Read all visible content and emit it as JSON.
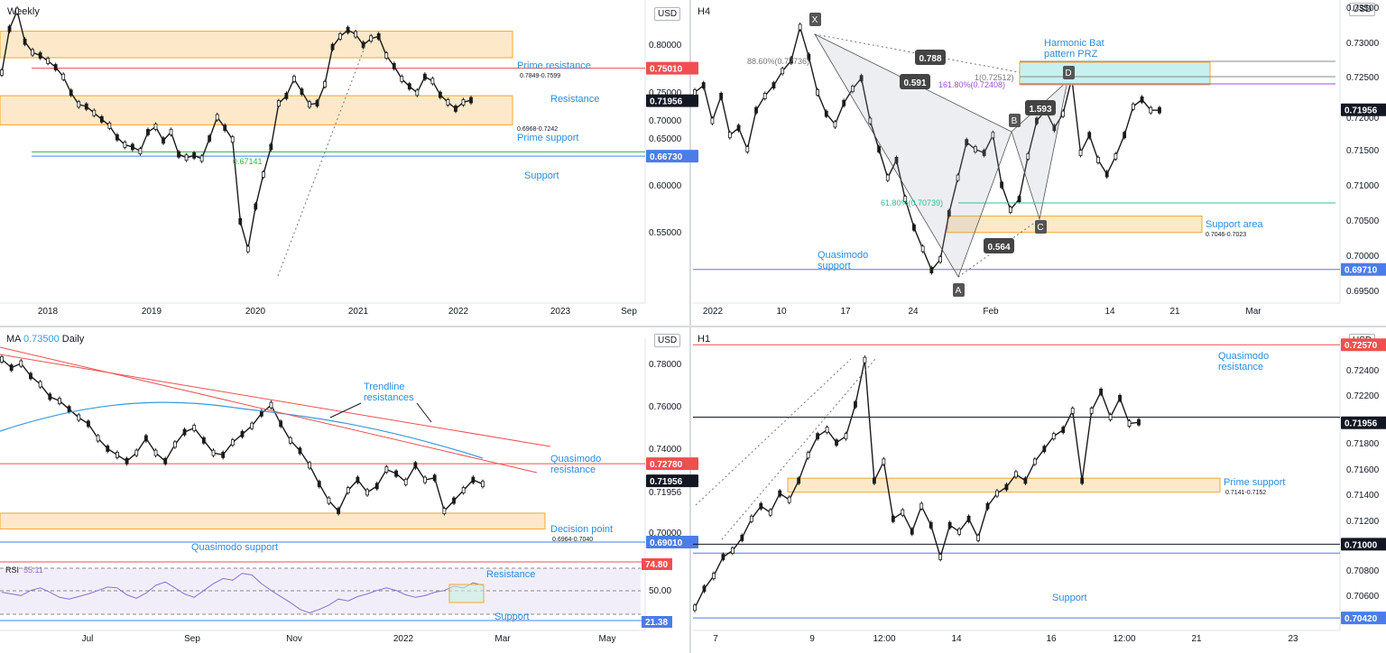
{
  "colors": {
    "bull": "#1a1a1a",
    "bear": "#1a1a1a",
    "zone_fill": "#fde9c9",
    "zone_stroke": "#f0a830",
    "prz_fill": "#c8f0f0",
    "prz_stroke": "#f0a830",
    "resistance": "#ef4f4f",
    "support": "#4a7de8",
    "green": "#2fb34a",
    "label_blue": "#2a8de0",
    "price_tag": "#131722",
    "ma": "#3a9ad9",
    "rsi": "#8a6fd0",
    "gray_dash": "#888888"
  },
  "chart_data": [
    {
      "id": "weekly",
      "type": "line",
      "title": "Weekly",
      "currency": "USD",
      "x_ticks": [
        "2018",
        "2019",
        "2020",
        "2021",
        "2022",
        "2023",
        "Sep"
      ],
      "y_ticks": [
        "0.80000",
        "0.75000",
        "0.70000",
        "0.65000",
        "0.60000",
        "0.55000"
      ],
      "ylim": [
        0.53,
        0.81
      ],
      "last_price": "0.71956",
      "series": [
        {
          "values": [
            0.746,
            0.787,
            0.804,
            0.775,
            0.765,
            0.762,
            0.757,
            0.751,
            0.742,
            0.727,
            0.716,
            0.714,
            0.708,
            0.702,
            0.696,
            0.685,
            0.678,
            0.676,
            0.672,
            0.69,
            0.695,
            0.682,
            0.69,
            0.669,
            0.666,
            0.668,
            0.665,
            0.684,
            0.704,
            0.694,
            0.683,
            0.606,
            0.58,
            0.62,
            0.65,
            0.676,
            0.717,
            0.724,
            0.74,
            0.728,
            0.716,
            0.717,
            0.735,
            0.77,
            0.78,
            0.786,
            0.782,
            0.772,
            0.778,
            0.78,
            0.762,
            0.752,
            0.74,
            0.733,
            0.727,
            0.742,
            0.738,
            0.725,
            0.718,
            0.712,
            0.718,
            0.72
          ]
        }
      ],
      "levels": [
        {
          "name": "Prime resistance",
          "range_text": "0.7849-0.7599",
          "hi": 0.7849,
          "lo": 0.7599,
          "kind": "zone"
        },
        {
          "name": "Resistance",
          "value": 0.7501,
          "tag": "0.75010",
          "kind": "resistance"
        },
        {
          "name": "Prime support",
          "range_text": "0.6968-0.7242",
          "hi": 0.7242,
          "lo": 0.6968,
          "kind": "zone"
        },
        {
          "fib_label": "0.67141",
          "value": 0.6714,
          "kind": "green"
        },
        {
          "name": "Support",
          "value": 0.6673,
          "tag": "0.66730",
          "kind": "support"
        }
      ]
    },
    {
      "id": "h4",
      "type": "line",
      "title": "H4",
      "currency": "USD",
      "x_ticks": [
        "2022",
        "10",
        "17",
        "24",
        "Feb",
        "14",
        "21",
        "Mar"
      ],
      "y_ticks": [
        "0.73500",
        "0.73000",
        "0.72500",
        "0.72000",
        "0.71500",
        "0.71000",
        "0.70500",
        "0.70000",
        "0.69500"
      ],
      "ylim": [
        0.6925,
        0.735
      ],
      "last_price": "0.71956",
      "series": [
        {
          "values": [
            0.722,
            0.723,
            0.718,
            0.7215,
            0.716,
            0.717,
            0.714,
            0.7195,
            0.7215,
            0.723,
            0.725,
            0.7265,
            0.7312,
            0.727,
            0.722,
            0.719,
            0.7175,
            0.7205,
            0.7225,
            0.724,
            0.718,
            0.714,
            0.71,
            0.7125,
            0.707,
            0.703,
            0.7,
            0.697,
            0.6985,
            0.705,
            0.71,
            0.715,
            0.714,
            0.7135,
            0.716,
            0.709,
            0.7055,
            0.707,
            0.713,
            0.718,
            0.7195,
            0.717,
            0.719,
            0.724,
            0.7135,
            0.716,
            0.7125,
            0.7105,
            0.713,
            0.716,
            0.72,
            0.721,
            0.7195,
            0.7195
          ]
        }
      ],
      "pattern": {
        "name": "Harmonic Bat pattern PRZ",
        "points": [
          "X",
          "A",
          "B",
          "C",
          "D"
        ],
        "ratios": [
          "0.788",
          "0.591",
          "1.593",
          "0.564"
        ],
        "fibs": [
          "88.60%(0.72736)",
          "161.80%(0.72408)",
          "1(0.72512)",
          "61.80%(0.70739)"
        ]
      },
      "levels": [
        {
          "name": "Support area",
          "range_text": "0.7046-0.7023",
          "hi": 0.7046,
          "lo": 0.7023,
          "kind": "zone"
        },
        {
          "name": "Quasimodo support",
          "value": 0.6971,
          "tag": "0.69710",
          "kind": "support"
        }
      ]
    },
    {
      "id": "daily",
      "type": "line",
      "title": "Daily",
      "ma_label": "MA",
      "ma_value": "0.73500",
      "currency": "USD",
      "x_ticks": [
        "Jul",
        "Sep",
        "Nov",
        "2022",
        "Mar",
        "May"
      ],
      "y_ticks": [
        "0.78000",
        "0.76000",
        "0.74000",
        "0.71956",
        "0.70000"
      ],
      "ylim": [
        0.684,
        0.786
      ],
      "last_price": "0.71956",
      "series": [
        {
          "values": [
            0.778,
            0.774,
            0.776,
            0.77,
            0.766,
            0.76,
            0.758,
            0.754,
            0.75,
            0.747,
            0.74,
            0.735,
            0.732,
            0.729,
            0.733,
            0.74,
            0.733,
            0.729,
            0.737,
            0.743,
            0.745,
            0.739,
            0.733,
            0.732,
            0.738,
            0.742,
            0.746,
            0.752,
            0.756,
            0.747,
            0.739,
            0.734,
            0.727,
            0.718,
            0.71,
            0.705,
            0.715,
            0.72,
            0.714,
            0.717,
            0.725,
            0.723,
            0.719,
            0.727,
            0.72,
            0.721,
            0.705,
            0.71,
            0.715,
            0.72,
            0.718
          ]
        }
      ],
      "annotations": [
        "Trendline resistances"
      ],
      "levels": [
        {
          "name": "Quasimodo resistance",
          "value": 0.7278,
          "tag": "0.72780",
          "kind": "resistance"
        },
        {
          "name": "Decision point",
          "range_text": "0.6964-0.7040",
          "hi": 0.704,
          "lo": 0.6964,
          "kind": "zone"
        },
        {
          "name": "Quasimodo support",
          "value": 0.6901,
          "tag": "0.69010",
          "kind": "support"
        }
      ],
      "rsi": {
        "label": "RSI",
        "value": "55.11",
        "tick": "50.00",
        "resistance": {
          "name": "Resistance",
          "tag": "74.80"
        },
        "support": {
          "name": "Support",
          "tag": "21.38"
        },
        "values": [
          50,
          48,
          46,
          52,
          55,
          50,
          44,
          42,
          45,
          48,
          52,
          56,
          55,
          47,
          43,
          49,
          58,
          62,
          55,
          48,
          44,
          52,
          60,
          66,
          64,
          72,
          70,
          60,
          52,
          45,
          38,
          30,
          26,
          30,
          35,
          42,
          40,
          45,
          48,
          52,
          55,
          52,
          47,
          44,
          46,
          50,
          52,
          57,
          55,
          61,
          58
        ]
      }
    },
    {
      "id": "h1",
      "type": "line",
      "title": "H1",
      "currency": "USD",
      "x_ticks": [
        "7",
        "9",
        "12:00",
        "14",
        "16",
        "12:00",
        "21",
        "23"
      ],
      "y_ticks": [
        "0.72400",
        "0.72200",
        "0.71800",
        "0.71600",
        "0.71400",
        "0.71200",
        "0.70800",
        "0.70600"
      ],
      "ylim": [
        0.7035,
        0.726
      ],
      "last_price": "0.71956",
      "series": [
        {
          "values": [
            0.705,
            0.7065,
            0.7075,
            0.709,
            0.7095,
            0.7105,
            0.712,
            0.713,
            0.7125,
            0.714,
            0.7135,
            0.715,
            0.717,
            0.7185,
            0.719,
            0.718,
            0.7185,
            0.721,
            0.7245,
            0.715,
            0.7165,
            0.712,
            0.7125,
            0.711,
            0.713,
            0.7115,
            0.709,
            0.7115,
            0.711,
            0.712,
            0.7105,
            0.713,
            0.714,
            0.7145,
            0.7155,
            0.715,
            0.7165,
            0.7175,
            0.7185,
            0.719,
            0.7205,
            0.715,
            0.7205,
            0.722,
            0.72,
            0.7215,
            0.7195,
            0.7196
          ]
        }
      ],
      "levels": [
        {
          "name": "Quasimodo resistance",
          "value": 0.7257,
          "tag": "0.72570",
          "kind": "resistance"
        },
        {
          "value": 0.72,
          "kind": "black"
        },
        {
          "name": "Prime support",
          "range_text": "0.7141-0.7152",
          "hi": 0.7152,
          "lo": 0.7141,
          "kind": "zone"
        },
        {
          "value": 0.71,
          "tag": "0.71000",
          "kind": "black"
        },
        {
          "value": 0.7093,
          "kind": "support"
        },
        {
          "name": "Support",
          "value": 0.7042,
          "tag": "0.70420",
          "kind": "support"
        }
      ]
    }
  ]
}
